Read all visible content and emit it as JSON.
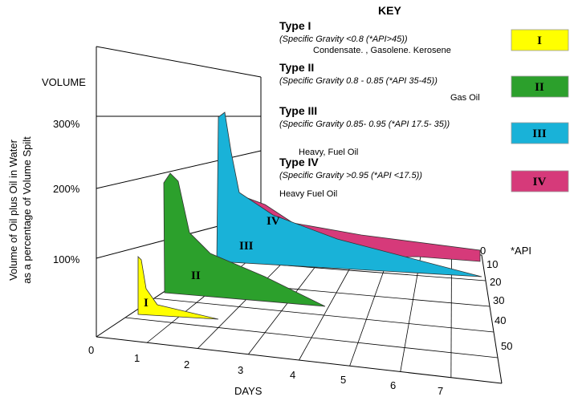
{
  "key": {
    "title": "KEY",
    "entries": [
      {
        "name": "Type I",
        "spec": "(Specific Gravity <0.8 (*API>45))",
        "examples": "Condensate.        , Gasolene. Kerosene",
        "badge": "I"
      },
      {
        "name": "Type II",
        "spec": "(Specific Gravity 0.8 - 0.85 (*API 35-45))",
        "examples": "Gas Oil",
        "badge": "II"
      },
      {
        "name": "Type III",
        "spec": "(Specific Gravity 0.85- 0.95 (*API 17.5- 35))",
        "examples": "Heavy, Fuel Oil",
        "badge": "III"
      },
      {
        "name": "Type IV",
        "spec": "(Specific Gravity >0.95 (*API <17.5))",
        "examples": "Heavy Fuel Oil",
        "badge": "IV"
      }
    ]
  },
  "volume_axis": {
    "title": "VOLUME",
    "label_lines": [
      "Volume of Oil plus Oil in Water",
      "as a percentage of Volume Spilt"
    ],
    "ticks": [
      "100%",
      "200%",
      "300%"
    ]
  },
  "days_axis": {
    "title": "DAYS",
    "ticks": [
      "0",
      "1",
      "2",
      "3",
      "4",
      "5",
      "6",
      "7"
    ]
  },
  "api_axis": {
    "title": "*API",
    "ticks": [
      "0",
      "10",
      "20",
      "30",
      "40",
      "50"
    ]
  },
  "shapes": [
    "I",
    "II",
    "III",
    "IV"
  ]
}
